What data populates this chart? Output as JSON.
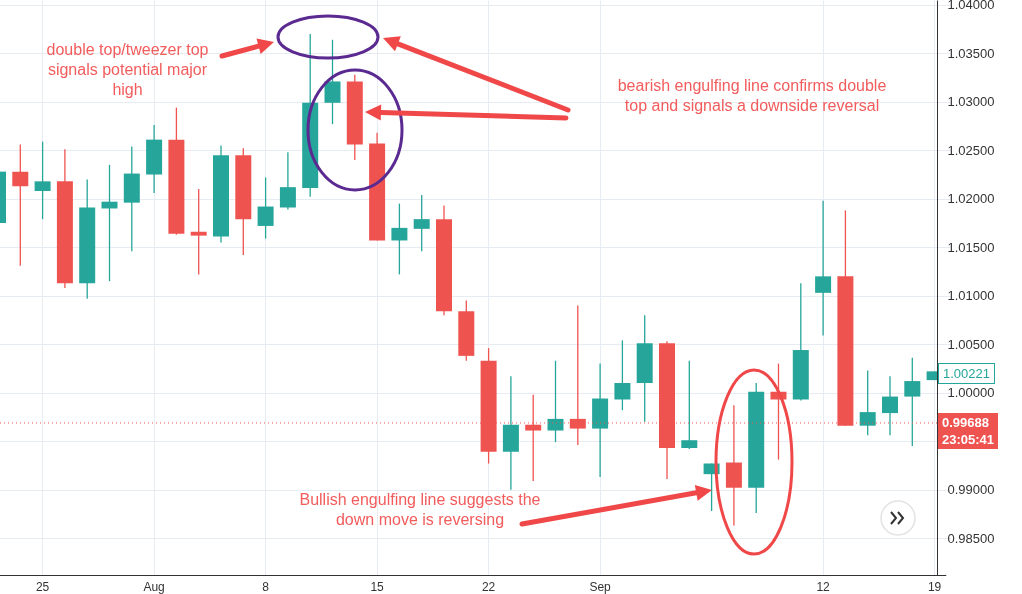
{
  "chart_data": {
    "type": "candlestick",
    "categories": [
      null,
      null,
      "25",
      null,
      null,
      null,
      null,
      "Aug",
      null,
      null,
      null,
      null,
      "8",
      null,
      null,
      null,
      null,
      "15",
      null,
      null,
      null,
      null,
      "22",
      null,
      null,
      null,
      null,
      "Sep",
      null,
      null,
      null,
      null,
      null,
      null,
      null,
      null,
      null,
      "12",
      null,
      null,
      null,
      null,
      "19"
    ],
    "ohlc": [
      [
        1.0175,
        1.0228,
        1.0175,
        1.0228
      ],
      [
        1.0228,
        1.0256,
        1.0131,
        1.0213
      ],
      [
        1.0208,
        1.0259,
        1.0179,
        1.0218
      ],
      [
        1.0218,
        1.0251,
        1.0108,
        1.0113
      ],
      [
        1.0113,
        1.022,
        1.0097,
        1.0191
      ],
      [
        1.019,
        1.0235,
        1.0115,
        1.0197
      ],
      [
        1.0196,
        1.0254,
        1.0146,
        1.0226
      ],
      [
        1.0225,
        1.0276,
        1.0206,
        1.0261
      ],
      [
        1.0261,
        1.0294,
        1.0163,
        1.0164
      ],
      [
        1.0166,
        1.021,
        1.0122,
        1.0162
      ],
      [
        1.0161,
        1.0255,
        1.0155,
        1.0245
      ],
      [
        1.0245,
        1.0252,
        1.0142,
        1.0179
      ],
      [
        1.0172,
        1.0222,
        1.0159,
        1.0192
      ],
      [
        1.0191,
        1.0248,
        1.0189,
        1.0212
      ],
      [
        1.0211,
        1.037,
        1.0202,
        1.0299
      ],
      [
        1.0299,
        1.0364,
        1.0277,
        1.0321
      ],
      [
        1.0321,
        1.0328,
        1.024,
        1.0256
      ],
      [
        1.0257,
        1.0268,
        1.0157,
        1.0157
      ],
      [
        1.0157,
        1.0195,
        1.0122,
        1.017
      ],
      [
        1.0169,
        1.0204,
        1.0146,
        1.0179
      ],
      [
        1.0179,
        1.0193,
        1.008,
        1.0084
      ],
      [
        1.0084,
        1.0095,
        1.0033,
        1.0038
      ],
      [
        1.0033,
        1.0046,
        0.9927,
        0.9939
      ],
      [
        0.9939,
        1.0017,
        0.99,
        0.9967
      ],
      [
        0.9967,
        0.9998,
        0.9909,
        0.9961
      ],
      [
        0.9961,
        1.0033,
        0.9949,
        0.9973
      ],
      [
        0.9973,
        1.009,
        0.9946,
        0.9963
      ],
      [
        0.9963,
        1.003,
        0.9913,
        0.9994
      ],
      [
        0.9993,
        1.0054,
        0.9982,
        1.001
      ],
      [
        1.001,
        1.008,
        0.997,
        1.0051
      ],
      [
        1.0051,
        1.0053,
        0.9911,
        0.9943
      ],
      [
        0.9943,
        1.0033,
        0.9942,
        0.9951
      ],
      [
        0.9916,
        0.9927,
        0.9878,
        0.9927
      ],
      [
        0.9928,
        0.9987,
        0.9863,
        0.9902
      ],
      [
        0.9902,
        1.001,
        0.9876,
        1.0001
      ],
      [
        1.0001,
        1.003,
        0.9931,
        0.9993
      ],
      [
        0.9993,
        1.0113,
        0.9992,
        1.0044
      ],
      [
        1.0103,
        1.0198,
        1.0059,
        1.012
      ],
      [
        1.012,
        1.0188,
        0.9966,
        0.9966
      ],
      [
        0.9966,
        1.0023,
        0.9956,
        0.998
      ],
      [
        0.9979,
        1.0017,
        0.9956,
        0.9996
      ],
      [
        0.9996,
        1.0036,
        0.9945,
        1.0012
      ],
      [
        1.0013,
        1.0022,
        1.0013,
        1.0022
      ]
    ],
    "colors": [
      "#26a69a",
      "#ef5350",
      "#26a69a",
      "#ef5350",
      "#26a69a",
      "#26a69a",
      "#26a69a",
      "#26a69a",
      "#ef5350",
      "#ef5350",
      "#26a69a",
      "#ef5350",
      "#26a69a",
      "#26a69a",
      "#26a69a",
      "#26a69a",
      "#ef5350",
      "#ef5350",
      "#26a69a",
      "#26a69a",
      "#ef5350",
      "#ef5350",
      "#ef5350",
      "#26a69a",
      "#ef5350",
      "#26a69a",
      "#ef5350",
      "#26a69a",
      "#26a69a",
      "#26a69a",
      "#ef5350",
      "#26a69a",
      "#26a69a",
      "#ef5350",
      "#26a69a",
      "#ef5350",
      "#26a69a",
      "#26a69a",
      "#ef5350",
      "#26a69a",
      "#26a69a",
      "#26a69a",
      "#26a69a"
    ],
    "ylim": [
      0.9812,
      1.0405
    ],
    "yticks": [
      {
        "value": 0.985,
        "label": "0.98500"
      },
      {
        "value": 0.99,
        "label": "0.99000"
      },
      {
        "value": 0.995,
        "label": null
      },
      {
        "value": 1.0,
        "label": "1.00000"
      },
      {
        "value": 1.005,
        "label": "1.00500"
      },
      {
        "value": 1.01,
        "label": "1.01000"
      },
      {
        "value": 1.015,
        "label": "1.01500"
      },
      {
        "value": 1.02,
        "label": "1.02000"
      },
      {
        "value": 1.025,
        "label": "1.02500"
      },
      {
        "value": 1.03,
        "label": "1.03000"
      },
      {
        "value": 1.035,
        "label": "1.03500"
      },
      {
        "value": 1.04,
        "label": "1.04000"
      }
    ],
    "grid": true,
    "ref_lines": [
      {
        "axis": "y",
        "value": 0.99688,
        "label": "0.99688\n23:05:41",
        "color": "#ef5350",
        "line_style": "dotted"
      }
    ],
    "annotations": [
      "double top/tweezer top signals potential major high",
      "bearish engulfing line confirms double top and signals a downside reversal",
      "Bullish engulfing line suggests the down move is reversing",
      "1.00221"
    ]
  }
}
